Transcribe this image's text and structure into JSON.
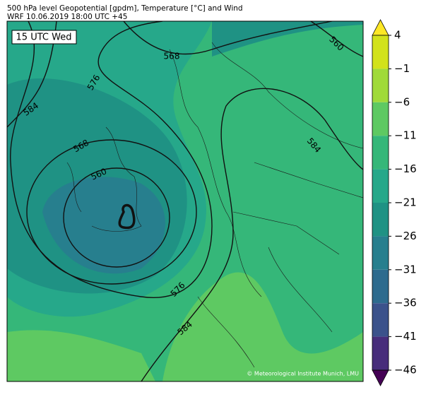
{
  "header": {
    "title": "500 hPa level Geopotential [gpdm], Temperature [°C] and Wind",
    "subtitle": "WRF 10.06.2019 18:00 UTC +45"
  },
  "map": {
    "timestamp": "15 UTC Wed",
    "contour_labels": [
      "584",
      "568",
      "560",
      "576",
      "568",
      "560",
      "584",
      "576",
      "584"
    ],
    "credit": "© Meteorological Institute Munich, LMU"
  },
  "colorbar": {
    "labels": [
      "4",
      "−1",
      "−6",
      "−11",
      "−16",
      "−21",
      "−26",
      "−31",
      "−36",
      "−41",
      "−46"
    ],
    "colors": [
      "#fde725",
      "#d2e21b",
      "#a0da39",
      "#5ec962",
      "#35b779",
      "#26a88a",
      "#1f9284",
      "#277f8e",
      "#2e6b8e",
      "#3b528b",
      "#472d7b",
      "#440154"
    ]
  }
}
